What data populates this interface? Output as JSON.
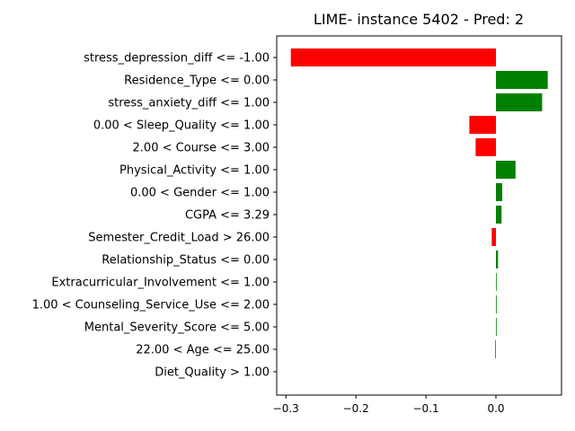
{
  "chart_data": {
    "type": "bar",
    "orientation": "horizontal",
    "title": "LIME- instance 5402 - Pred: 2",
    "xlabel": "",
    "ylabel": "",
    "xlim": [
      -0.3,
      0.095
    ],
    "xticks": [
      -0.3,
      -0.2,
      -0.1,
      0.0
    ],
    "xtick_labels": [
      "−0.3",
      "−0.2",
      "−0.1",
      "0.0"
    ],
    "grid": false,
    "legend": "none",
    "colors": {
      "positive": "#008000",
      "negative": "#ff0000"
    },
    "bars": [
      {
        "label": "stress_depression_diff <= -1.00",
        "value": -0.293
      },
      {
        "label": "Residence_Type <= 0.00",
        "value": 0.074
      },
      {
        "label": "stress_anxiety_diff <= 1.00",
        "value": 0.066
      },
      {
        "label": "0.00 < Sleep_Quality <= 1.00",
        "value": -0.038
      },
      {
        "label": "2.00 < Course <= 3.00",
        "value": -0.029
      },
      {
        "label": "Physical_Activity <= 1.00",
        "value": 0.028
      },
      {
        "label": "0.00 < Gender <= 1.00",
        "value": 0.009
      },
      {
        "label": "CGPA <= 3.29",
        "value": 0.008
      },
      {
        "label": "Semester_Credit_Load > 26.00",
        "value": -0.006
      },
      {
        "label": "Relationship_Status <= 0.00",
        "value": 0.003
      },
      {
        "label": "Extracurricular_Involvement <= 1.00",
        "value": 0.001
      },
      {
        "label": "1.00 < Counseling_Service_Use <= 2.00",
        "value": 0.001
      },
      {
        "label": "Mental_Severity_Score <= 5.00",
        "value": 0.001
      },
      {
        "label": "22.00 < Age <= 25.00",
        "value": -0.001
      },
      {
        "label": "Diet_Quality > 1.00",
        "value": 0.0
      }
    ]
  }
}
